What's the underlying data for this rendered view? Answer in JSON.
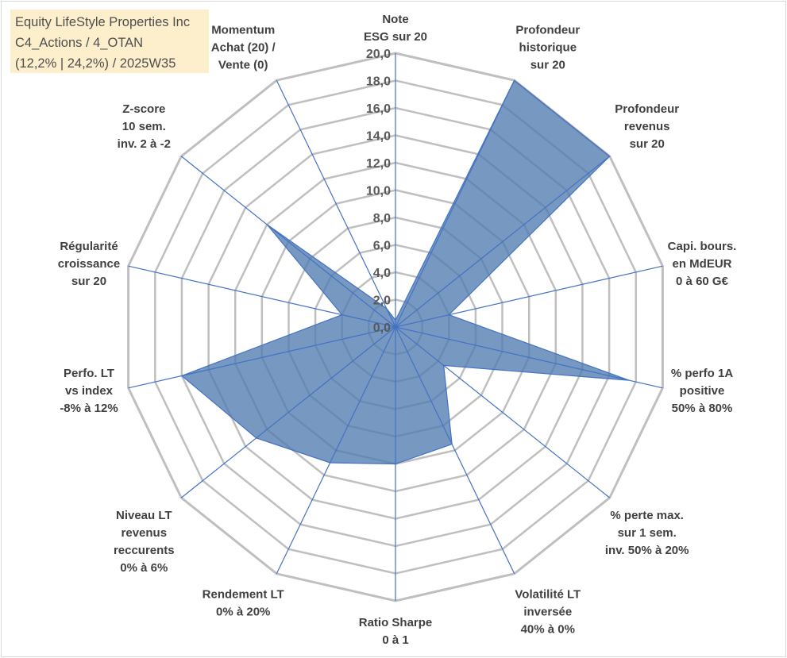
{
  "title": {
    "line1": "Equity LifeStyle Properties Inc",
    "line2": "C4_Actions / 4_OTAN",
    "line3": "(12,2% | 24,2%) / 2025W35"
  },
  "colors": {
    "fill": "#4f7bb0",
    "line": "#4472c4",
    "grid": "#bfbfbf"
  },
  "chart_data": {
    "type": "radar",
    "rmin": 0,
    "rmax": 20,
    "tick_step": 2,
    "ticks": [
      "0,0",
      "2,0",
      "4,0",
      "6,0",
      "8,0",
      "10,0",
      "12,0",
      "14,0",
      "16,0",
      "18,0",
      "20,0"
    ],
    "axes": [
      {
        "label": [
          "Note",
          "ESG sur 20"
        ],
        "value": 0.5
      },
      {
        "label": [
          "Profondeur",
          "historique",
          "sur 20"
        ],
        "value": 20
      },
      {
        "label": [
          "Profondeur",
          "revenus",
          "sur 20"
        ],
        "value": 20
      },
      {
        "label": [
          "Capi. bours.",
          "en MdEUR",
          "0 à 60 G€"
        ],
        "value": 4
      },
      {
        "label": [
          "% perfo 1A",
          "positive",
          "50% à 80%"
        ],
        "value": 17.5
      },
      {
        "label": [
          "% perte max.",
          "sur 1 sem.",
          "inv. 50% à 20%"
        ],
        "value": 4.5
      },
      {
        "label": [
          "Volatilité LT",
          "inversée",
          "40% à 0%"
        ],
        "value": 9.5
      },
      {
        "label": [
          "Ratio Sharpe",
          "0 à 1"
        ],
        "value": 10
      },
      {
        "label": [
          "Rendement LT",
          "0% à 20%"
        ],
        "value": 11
      },
      {
        "label": [
          "Niveau LT",
          "revenus",
          "reccurents",
          "0% à 6%"
        ],
        "value": 13
      },
      {
        "label": [
          "Perfo. LT",
          "vs index",
          "-8% à 12%"
        ],
        "value": 16
      },
      {
        "label": [
          "Régularité",
          "croissance",
          "sur 20"
        ],
        "value": 4
      },
      {
        "label": [
          "Z-score",
          "10 sem.",
          "inv. 2 à -2"
        ],
        "value": 12
      },
      {
        "label": [
          "Momentum",
          "Achat (20) /",
          "Vente (0)"
        ],
        "value": 1.5
      }
    ]
  }
}
